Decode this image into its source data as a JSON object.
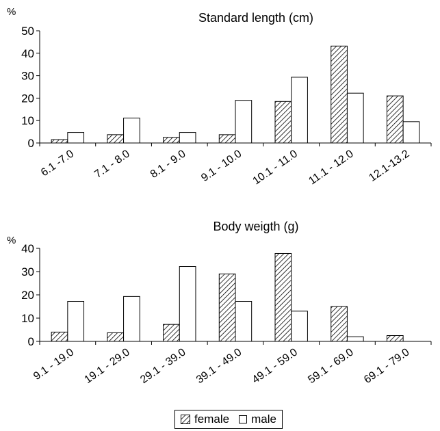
{
  "colors": {
    "bar_edge": "#000000",
    "hatch": "#000000",
    "female_bg": "#ffffff",
    "male_fill": "#ffffff"
  },
  "legend": {
    "female": "female",
    "male": "male"
  },
  "chart_data": [
    {
      "type": "bar",
      "title": "Standard length (cm)",
      "ylabel": "%",
      "xlabel": "",
      "ylim": [
        0,
        50
      ],
      "yticks": [
        0,
        10,
        20,
        30,
        40,
        50
      ],
      "grid": false,
      "categories": [
        "6.1 -7.0",
        "7.1 - 8.0",
        "8.1 - 9.0",
        "9.1 - 10.0",
        "10.1 - 11.0",
        "11.1 - 12.0",
        "12.1-13.2"
      ],
      "series": [
        {
          "name": "female",
          "values": [
            1.5,
            3.7,
            2.5,
            3.7,
            18.5,
            43.2,
            21.0
          ]
        },
        {
          "name": "male",
          "values": [
            4.7,
            11.1,
            4.7,
            19.0,
            29.3,
            22.2,
            9.5
          ]
        }
      ]
    },
    {
      "type": "bar",
      "title": "Body weigth (g)",
      "ylabel": "%",
      "xlabel": "",
      "ylim": [
        0,
        40
      ],
      "yticks": [
        0,
        10,
        20,
        30,
        40
      ],
      "grid": false,
      "categories": [
        "9.1 - 19.0",
        "19.1 - 29.0",
        "29.1 - 39.0",
        "39.1 - 49.0",
        "49.1 - 59.0",
        "59.1 - 69.0",
        "69.1 - 79.0"
      ],
      "series": [
        {
          "name": "female",
          "values": [
            4.0,
            3.7,
            7.3,
            29.0,
            37.8,
            15.0,
            2.5
          ]
        },
        {
          "name": "male",
          "values": [
            17.2,
            19.3,
            32.2,
            17.2,
            13.0,
            2.0,
            0
          ]
        }
      ]
    }
  ]
}
